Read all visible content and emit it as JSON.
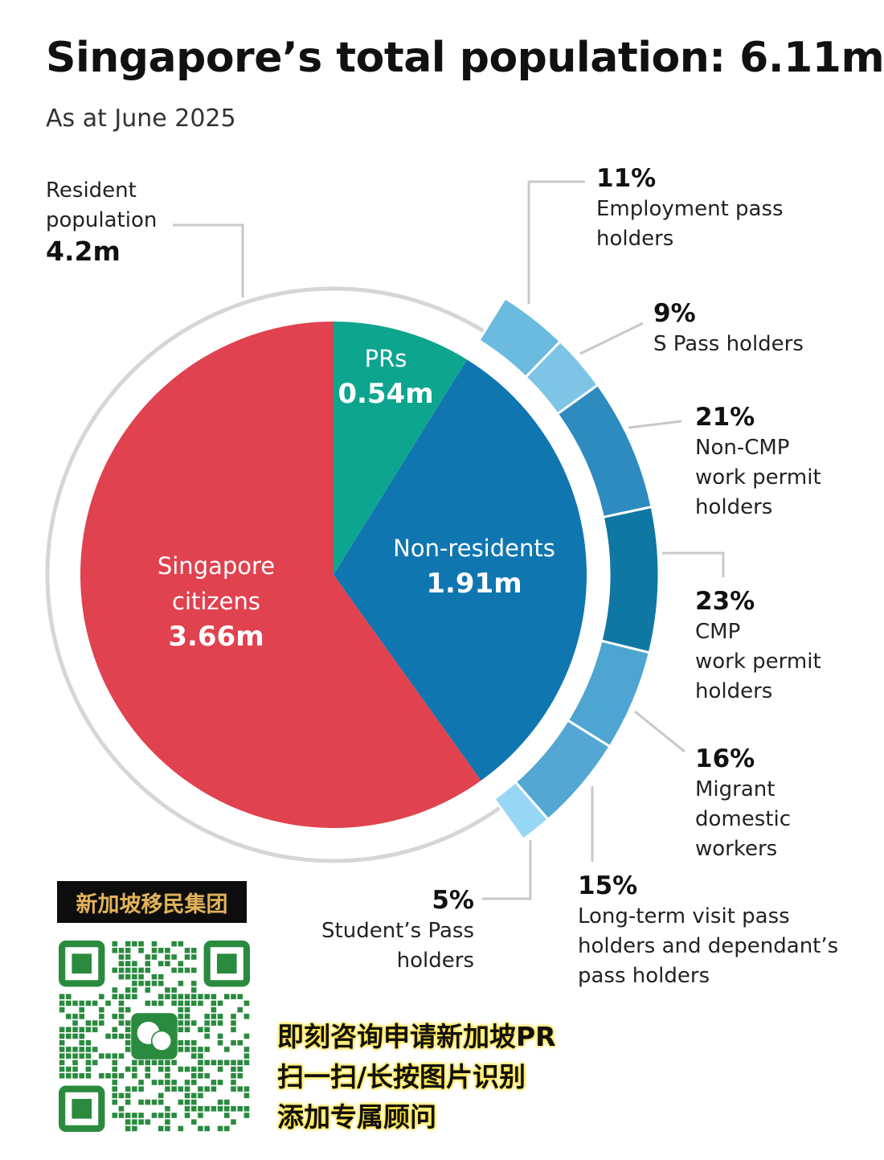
{
  "chart_data": {
    "type": "pie",
    "title": "Singapore’s total population: 6.11m",
    "subtitle": "As at June 2025",
    "total": "6.11m",
    "resident": {
      "label_line1": "Resident",
      "label_line2": "population",
      "value": "4.2m"
    },
    "slices": [
      {
        "name": "PRs",
        "value": 0.54,
        "value_label": "0.54m",
        "color": "#0ea58f"
      },
      {
        "name": "Non-residents",
        "value": 1.91,
        "value_label": "1.91m",
        "color": "#0f76b0"
      },
      {
        "name": "Singapore citizens",
        "name_line1": "Singapore",
        "name_line2": "citizens",
        "value": 3.66,
        "value_label": "3.66m",
        "color": "#e0424f"
      }
    ],
    "nonresident_breakdown": [
      {
        "pct": 11,
        "pct_label": "11%",
        "lines": [
          "Employment pass",
          "holders"
        ],
        "color": "#6bbae0"
      },
      {
        "pct": 9,
        "pct_label": "9%",
        "lines": [
          "S Pass holders"
        ],
        "color": "#7ec4e6"
      },
      {
        "pct": 21,
        "pct_label": "21%",
        "lines": [
          "Non-CMP",
          "work permit",
          "holders"
        ],
        "color": "#2e8bbf"
      },
      {
        "pct": 23,
        "pct_label": "23%",
        "lines": [
          "CMP",
          "work permit",
          "holders"
        ],
        "color": "#0f77a3"
      },
      {
        "pct": 16,
        "pct_label": "16%",
        "lines": [
          "Migrant",
          "domestic",
          "workers"
        ],
        "color": "#4ea5d1"
      },
      {
        "pct": 15,
        "pct_label": "15%",
        "lines": [
          "Long-term visit pass",
          "holders and dependant’s",
          "pass holders"
        ],
        "color": "#54a7d3"
      },
      {
        "pct": 5,
        "pct_label": "5%",
        "lines": [
          "Student’s Pass",
          "holders"
        ],
        "color": "#98d6f5"
      }
    ]
  },
  "promo": {
    "brand": "新加坡移民集团",
    "cta": [
      "即刻咨询申请新加坡PR",
      "扫一扫/长按图片识别",
      "添加专属顾问"
    ]
  }
}
